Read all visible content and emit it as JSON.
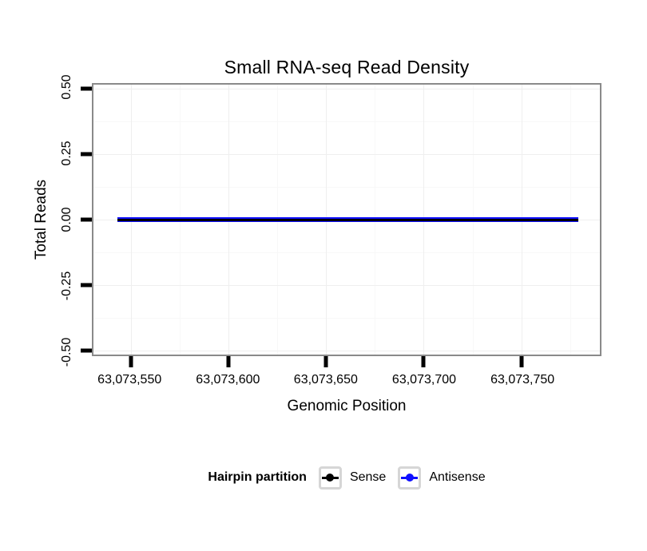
{
  "figure": {
    "title": "Small RNA-seq Read Density",
    "x_axis_label": "Genomic Position",
    "y_axis_label": "Total Reads"
  },
  "chart_data": {
    "type": "line",
    "title": "Small RNA-seq Read Density",
    "xlabel": "Genomic Position",
    "ylabel": "Total Reads",
    "x_tick_labels": [
      "63,073,550",
      "63,073,600",
      "63,073,650",
      "63,073,700",
      "63,073,750"
    ],
    "x_tick_values": [
      63073550,
      63073600,
      63073650,
      63073700,
      63073750
    ],
    "x_span_approx": [
      63073540,
      63073775
    ],
    "y_tick_labels": [
      "0.50",
      "0.25",
      "0.00",
      "-0.25",
      "-0.50"
    ],
    "ylim": [
      -0.5,
      0.5
    ],
    "grid": "faint major and minor gridlines on white background",
    "legend_position": "bottom",
    "series": [
      {
        "name": "Sense",
        "color": "#000000",
        "y_constant": 0,
        "description": "flat line at y=0 across full x span, drawn on top"
      },
      {
        "name": "Antisense",
        "color": "#0f0fff",
        "y_constant": 0,
        "description": "flat line at y=0, underneath Sense line (blue edges visible)"
      }
    ]
  },
  "legend": {
    "title": "Hairpin partition",
    "items": [
      {
        "label": "Sense",
        "color": "#000000"
      },
      {
        "label": "Antisense",
        "color": "#0f0fff"
      }
    ]
  },
  "colors": {
    "panel_border": "#8a8a8a",
    "tick_mark": "#000000",
    "grid_major": "#efefef",
    "grid_minor": "#f8f8f8",
    "sense": "#000000",
    "antisense": "#0f0fff",
    "legend_key_border": "#d6d6d6",
    "background": "#ffffff"
  }
}
